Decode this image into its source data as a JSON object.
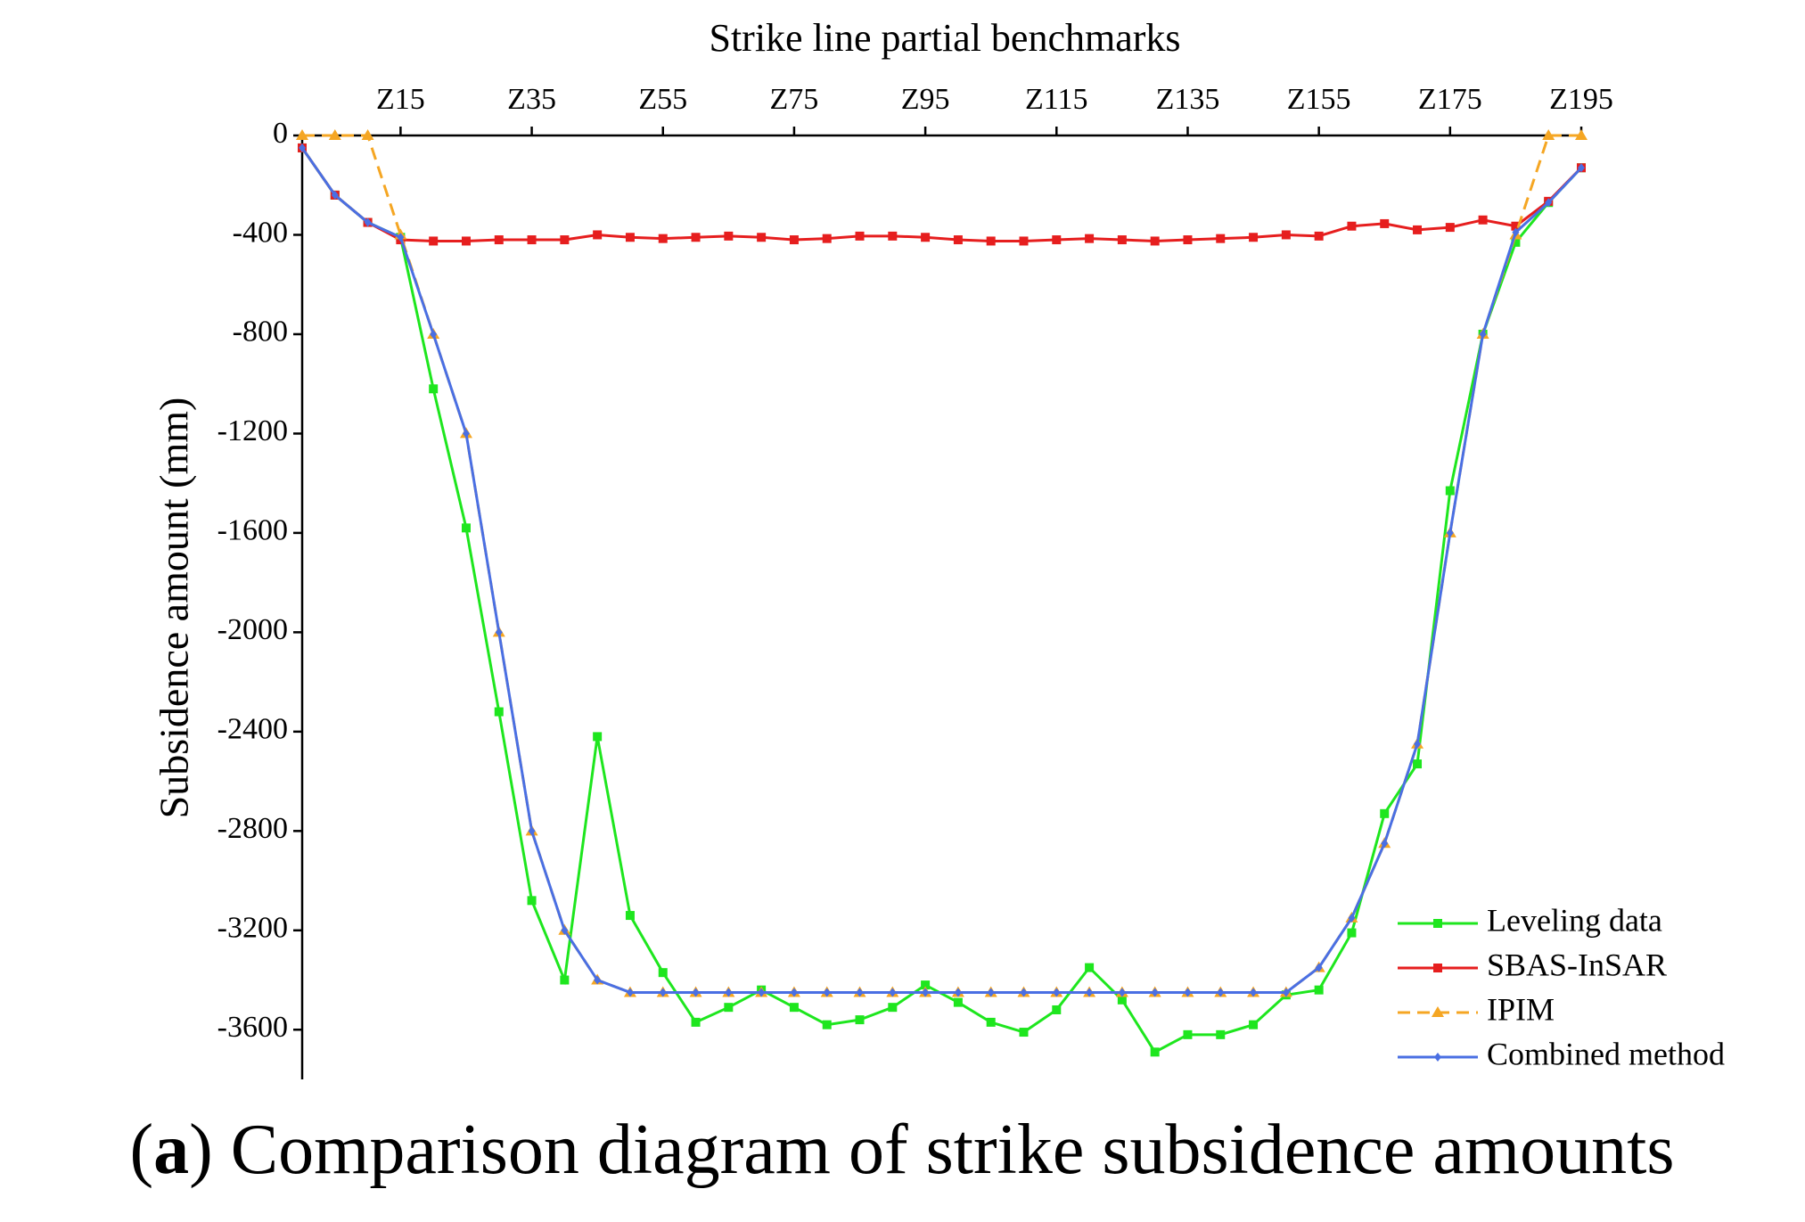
{
  "chart_data": {
    "type": "line",
    "title": "Strike line partial benchmarks",
    "y_label": "Subsidence amount (mm)",
    "caption": [
      "(",
      "a",
      ") Comparison diagram of strike subsidence amounts"
    ],
    "x": [
      0,
      5,
      10,
      15,
      20,
      25,
      30,
      35,
      40,
      45,
      50,
      55,
      60,
      65,
      70,
      75,
      80,
      85,
      90,
      95,
      100,
      105,
      110,
      115,
      120,
      125,
      130,
      135,
      140,
      145,
      150,
      155,
      160,
      165,
      170,
      175,
      180,
      185,
      190,
      195
    ],
    "xlim": [
      0,
      195
    ],
    "xticks": [
      {
        "value": 15,
        "label": "Z15"
      },
      {
        "value": 35,
        "label": "Z35"
      },
      {
        "value": 55,
        "label": "Z55"
      },
      {
        "value": 75,
        "label": "Z75"
      },
      {
        "value": 95,
        "label": "Z95"
      },
      {
        "value": 115,
        "label": "Z115"
      },
      {
        "value": 135,
        "label": "Z135"
      },
      {
        "value": 155,
        "label": "Z155"
      },
      {
        "value": 175,
        "label": "Z175"
      },
      {
        "value": 195,
        "label": "Z195"
      }
    ],
    "ylim": [
      -3800,
      0
    ],
    "yticks": [
      0,
      -400,
      -800,
      -1200,
      -1600,
      -2000,
      -2400,
      -2800,
      -3200,
      -3600
    ],
    "legend": "lower right",
    "series": [
      {
        "name": "Leveling data",
        "color": "#1ee61e",
        "marker": "square",
        "linestyle": "solid",
        "values": [
          -50,
          -240,
          -350,
          -410,
          -1020,
          -1580,
          -2320,
          -3080,
          -3400,
          -2420,
          -3140,
          -3370,
          -3570,
          -3510,
          -3440,
          -3510,
          -3580,
          -3560,
          -3510,
          -3420,
          -3490,
          -3570,
          -3610,
          -3520,
          -3350,
          -3480,
          -3690,
          -3620,
          -3620,
          -3580,
          -3460,
          -3440,
          -3210,
          -2730,
          -2530,
          -1430,
          -800,
          -430,
          -270,
          -130
        ]
      },
      {
        "name": "SBAS-InSAR",
        "color": "#e61e1e",
        "marker": "square",
        "linestyle": "solid",
        "values": [
          -50,
          -240,
          -350,
          -420,
          -425,
          -425,
          -420,
          -420,
          -420,
          -400,
          -410,
          -415,
          -410,
          -405,
          -410,
          -420,
          -415,
          -405,
          -405,
          -410,
          -420,
          -425,
          -425,
          -420,
          -415,
          -420,
          -425,
          -420,
          -415,
          -410,
          -400,
          -405,
          -365,
          -355,
          -380,
          -370,
          -340,
          -365,
          -265,
          -130
        ]
      },
      {
        "name": "IPIM",
        "color": "#f5a623",
        "marker": "triangle",
        "linestyle": "dashed",
        "values": [
          0,
          0,
          0,
          -400,
          -800,
          -1200,
          -2000,
          -2800,
          -3200,
          -3400,
          -3450,
          -3450,
          -3450,
          -3450,
          -3450,
          -3450,
          -3450,
          -3450,
          -3450,
          -3450,
          -3450,
          -3450,
          -3450,
          -3450,
          -3450,
          -3450,
          -3450,
          -3450,
          -3450,
          -3450,
          -3450,
          -3350,
          -3150,
          -2850,
          -2450,
          -1600,
          -800,
          -400,
          0,
          0
        ]
      },
      {
        "name": "Combined method",
        "color": "#4a6fe3",
        "marker": "diamond",
        "linestyle": "solid",
        "values": [
          -50,
          -240,
          -350,
          -410,
          -800,
          -1200,
          -2000,
          -2800,
          -3200,
          -3400,
          -3450,
          -3450,
          -3450,
          -3450,
          -3450,
          -3450,
          -3450,
          -3450,
          -3450,
          -3450,
          -3450,
          -3450,
          -3450,
          -3450,
          -3450,
          -3450,
          -3450,
          -3450,
          -3450,
          -3450,
          -3450,
          -3350,
          -3150,
          -2850,
          -2450,
          -1600,
          -800,
          -390,
          -270,
          -130
        ]
      }
    ]
  }
}
